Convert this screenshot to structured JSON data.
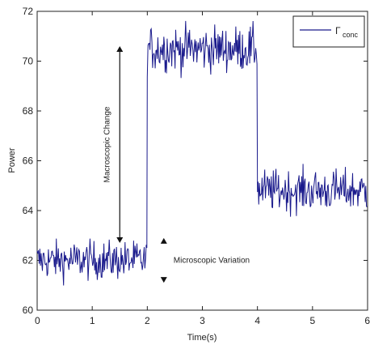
{
  "chart_data": {
    "type": "line",
    "xlabel": "Time(s)",
    "ylabel": "Power",
    "xlim": [
      0,
      6
    ],
    "ylim": [
      60,
      72
    ],
    "xticks": [
      0,
      1,
      2,
      3,
      4,
      5,
      6
    ],
    "yticks": [
      60,
      62,
      64,
      66,
      68,
      70,
      72
    ],
    "grid": false,
    "legend_position": "top-right",
    "line_color": "#1a1a8c",
    "series": [
      {
        "name": "Γconc",
        "segments": [
          {
            "x_start": 0,
            "x_end": 2,
            "mean": 62.0,
            "noise": 0.55
          },
          {
            "x_start": 2,
            "x_end": 4,
            "mean": 70.5,
            "noise": 0.65
          },
          {
            "x_start": 4,
            "x_end": 6,
            "mean": 64.8,
            "noise": 0.6
          }
        ]
      }
    ],
    "legend": {
      "symbol": "Γ",
      "subscript": "conc"
    },
    "annotations": [
      {
        "text": "Macroscopic Change",
        "orientation": "vertical",
        "arrow_x": 1.5,
        "y_from": 62.7,
        "y_to": 70.6
      },
      {
        "text": "Microscopic Variation",
        "arrow_x": 2.3,
        "y_from": 61.1,
        "y_to": 62.9
      }
    ]
  }
}
